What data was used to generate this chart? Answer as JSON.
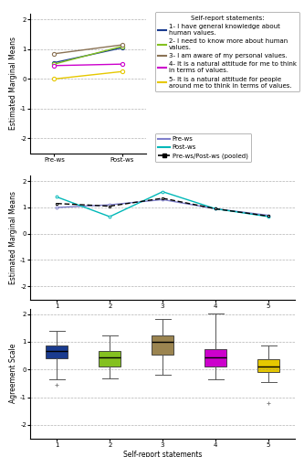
{
  "top": {
    "pre_ws": [
      0.55,
      0.5,
      0.85,
      0.45,
      0.0
    ],
    "post_ws": [
      1.05,
      1.1,
      1.15,
      0.5,
      0.25
    ],
    "colors": [
      "#1a3b8f",
      "#84c120",
      "#8B7355",
      "#cc00cc",
      "#e6c800"
    ],
    "labels": [
      "1- I have general knowledge about\nhuman values.",
      "2- I need to know more about human\nvalues.",
      "3- I am aware of my personal values.",
      "4- It is a natural attitude for me to think\nin terms of values.",
      "5- It is a natural attitude for people\naround me to think in terms of values."
    ],
    "ylabel": "Estimated Marginal Means",
    "ylim": [
      -2.5,
      2.2
    ],
    "yticks": [
      -2,
      -1,
      0,
      1,
      2
    ]
  },
  "middle": {
    "pre_ws": [
      1.0,
      1.1,
      1.3,
      0.95,
      0.7
    ],
    "post_ws": [
      1.4,
      0.65,
      1.6,
      0.95,
      0.65
    ],
    "pooled": [
      1.15,
      1.05,
      1.35,
      0.95,
      0.67
    ],
    "pre_color": "#8080cc",
    "post_color": "#00b8b8",
    "pooled_color": "#000000",
    "ylabel": "Estimated Marginal Means",
    "xlabel": "Self-report statements",
    "ylim": [
      -2.5,
      2.2
    ],
    "yticks": [
      -2,
      -1,
      0,
      1,
      2
    ]
  },
  "bottom": {
    "medians": [
      0.65,
      0.42,
      1.0,
      0.45,
      0.1
    ],
    "q1": [
      0.4,
      0.12,
      0.55,
      0.12,
      -0.08
    ],
    "q3": [
      0.88,
      0.65,
      1.22,
      0.72,
      0.38
    ],
    "whislo": [
      -0.35,
      -0.32,
      -0.18,
      -0.35,
      -0.45
    ],
    "whishi": [
      1.38,
      1.22,
      1.82,
      2.02,
      0.88
    ],
    "fliers": [
      [
        -0.55
      ],
      [],
      [],
      [],
      [
        -1.2
      ]
    ],
    "colors": [
      "#1a3b8f",
      "#84c120",
      "#9b8450",
      "#cc00cc",
      "#e6c800"
    ],
    "ylabel": "Agreement Scale",
    "xlabel": "Self-report statements",
    "ylim": [
      -2.5,
      2.2
    ],
    "yticks": [
      -2,
      -1,
      0,
      1,
      2
    ]
  },
  "legend1_title": "Self-report statements:",
  "legend2_labels": [
    "Pre-ws",
    "Post-ws",
    "Pre-ws/Post-ws (pooled)"
  ],
  "legend_fontsize": 5.0,
  "axis_fontsize": 5.5,
  "tick_fontsize": 5.0,
  "title_fontsize": 5.5
}
